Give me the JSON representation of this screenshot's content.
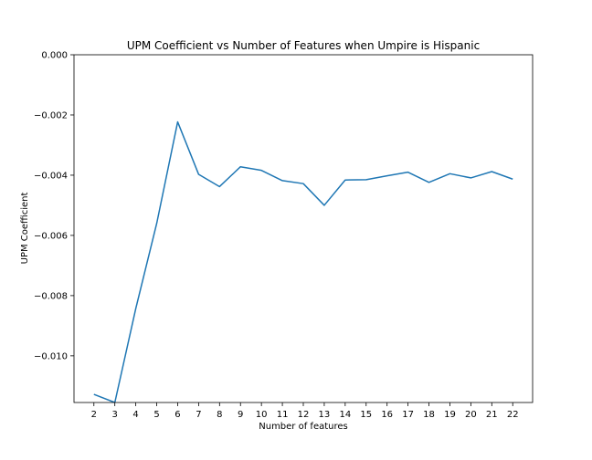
{
  "chart_data": {
    "type": "line",
    "title": "UPM Coefficient vs Number of Features when Umpire is Hispanic",
    "xlabel": "Number of features",
    "ylabel": "UPM Coefficient",
    "x": [
      2,
      3,
      4,
      5,
      6,
      7,
      8,
      9,
      10,
      11,
      12,
      13,
      14,
      15,
      16,
      17,
      18,
      19,
      20,
      21,
      22
    ],
    "series": [
      {
        "values": [
          -0.01128,
          -0.01155,
          -0.00843,
          -0.0056,
          -0.00223,
          -0.00397,
          -0.00438,
          -0.00372,
          -0.00384,
          -0.00418,
          -0.00428,
          -0.005,
          -0.00416,
          -0.00415,
          -0.00402,
          -0.0039,
          -0.00424,
          -0.00395,
          -0.00409,
          -0.00388,
          -0.00413
        ],
        "color": "#1f77b4"
      }
    ],
    "xticks": [
      "2",
      "3",
      "4",
      "5",
      "6",
      "7",
      "8",
      "9",
      "10",
      "11",
      "12",
      "13",
      "14",
      "15",
      "16",
      "17",
      "18",
      "19",
      "20",
      "21",
      "22"
    ],
    "yticks": [
      0.0,
      -0.002,
      -0.004,
      -0.006,
      -0.008,
      -0.01
    ],
    "ytick_labels": [
      "0.000",
      "−0.002",
      "−0.004",
      "−0.006",
      "−0.008",
      "−0.010"
    ],
    "xlim": [
      1.05,
      22.95
    ],
    "ylim": [
      -0.01155,
      0.0
    ],
    "grid": false,
    "legend": "none"
  }
}
